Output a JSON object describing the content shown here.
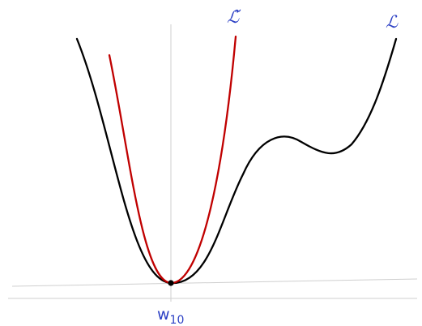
{
  "labels": {
    "surrogate_loss": "ℒ̃",
    "loss": "ℒ",
    "point": "w",
    "point_subscript": "10"
  },
  "colors": {
    "loss_curve": "#000000",
    "surrogate_curve": "#c00000",
    "label_text": "#2b3fc4",
    "axis": "#cfcfcf",
    "point": "#000000"
  }
}
